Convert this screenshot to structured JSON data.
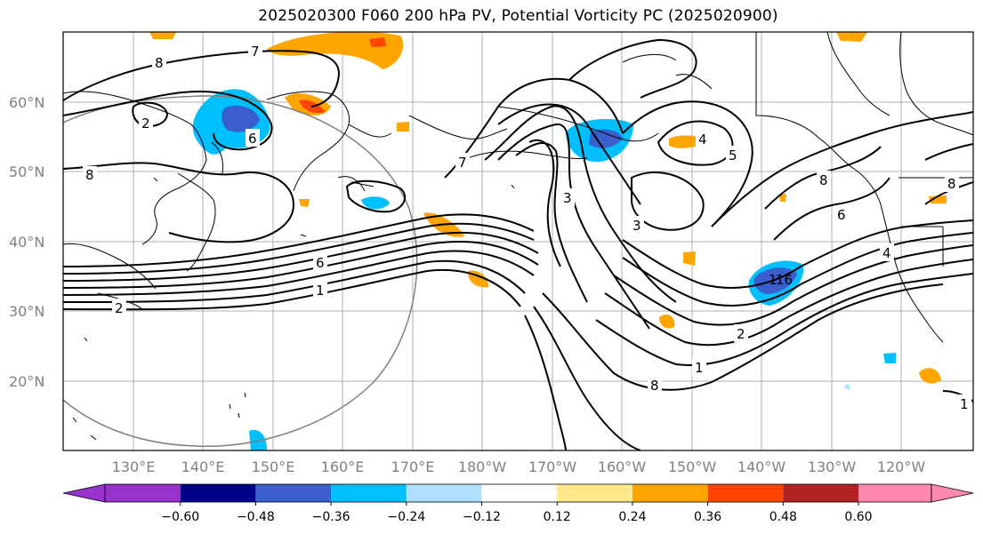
{
  "title": "2025020300 F060 200 hPa PV, Potential Vorticity PC (2025020900)",
  "lat_labels": [
    "60°N",
    "50°N",
    "40°N",
    "30°N",
    "20°N"
  ],
  "lon_labels": [
    "130°E",
    "140°E",
    "150°E",
    "160°E",
    "170°E",
    "180°W",
    "170°W",
    "160°W",
    "150°W",
    "140°W",
    "130°W",
    "120°W"
  ],
  "colorbar": {
    "colors": [
      "#9932cc",
      "#00008b",
      "#3a5fcd",
      "#00bfff",
      "#b0e0ff",
      "#ffffff",
      "#ffe98a",
      "#ffa500",
      "#ff4500",
      "#b22222",
      "#ff88b0"
    ],
    "ticks": [
      "−0.60",
      "−0.48",
      "−0.36",
      "−0.24",
      "−0.12",
      "0.12",
      "0.24",
      "0.36",
      "0.48",
      "0.60"
    ]
  },
  "contour_labels": [
    "7",
    "8",
    "6",
    "8",
    "6",
    "1",
    "2",
    "3",
    "5",
    "4",
    "3",
    "2",
    "1",
    "8",
    "8",
    "6",
    "8",
    "4",
    "7",
    "1",
    "1",
    "16",
    "2"
  ]
}
